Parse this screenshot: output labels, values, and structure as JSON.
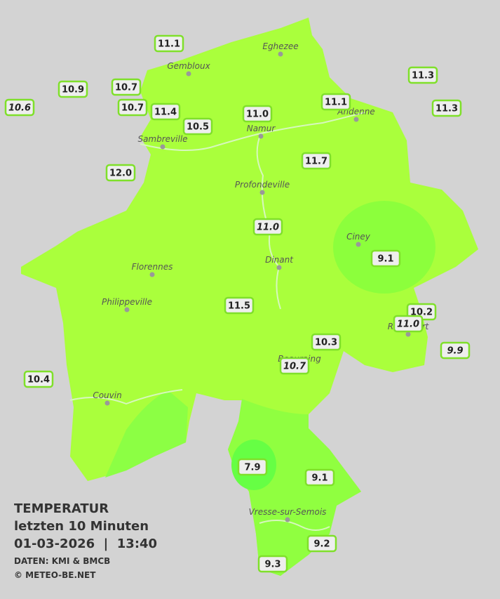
{
  "legend": {
    "title": "TEMPERATUR",
    "period": "letzten 10 Minuten",
    "datetime": "01-03-2026  |  13:40",
    "source": "DATEN: KMI & BMCB",
    "copyright": "© METEO-BE.NET"
  },
  "cities": [
    "Eghezee",
    "Gembloux",
    "Andenne",
    "Namur",
    "Sambreville",
    "Profondeville",
    "Ciney",
    "Dinant",
    "Florennes",
    "Philippeville",
    "Rochefort",
    "Beauraing",
    "Couvin",
    "Vresse-sur-Semois"
  ],
  "stations": [
    {
      "label": "11.1",
      "italic": false
    },
    {
      "label": "10.9",
      "italic": false
    },
    {
      "label": "10.7",
      "italic": false
    },
    {
      "label": "10.6",
      "italic": true
    },
    {
      "label": "10.7",
      "italic": false
    },
    {
      "label": "11.4",
      "italic": false
    },
    {
      "label": "10.5",
      "italic": false
    },
    {
      "label": "11.0",
      "italic": false
    },
    {
      "label": "11.1",
      "italic": false
    },
    {
      "label": "11.3",
      "italic": false
    },
    {
      "label": "11.3",
      "italic": false
    },
    {
      "label": "11.7",
      "italic": false
    },
    {
      "label": "12.0",
      "italic": false
    },
    {
      "label": "11.0",
      "italic": true
    },
    {
      "label": "9.1",
      "italic": false
    },
    {
      "label": "11.5",
      "italic": false
    },
    {
      "label": "10.2",
      "italic": false
    },
    {
      "label": "11.0",
      "italic": true
    },
    {
      "label": "10.3",
      "italic": false
    },
    {
      "label": "9.9",
      "italic": true
    },
    {
      "label": "10.7",
      "italic": true
    },
    {
      "label": "10.4",
      "italic": false
    },
    {
      "label": "7.9",
      "italic": false
    },
    {
      "label": "9.1",
      "italic": false
    },
    {
      "label": "9.2",
      "italic": false
    },
    {
      "label": "9.3",
      "italic": false
    }
  ]
}
